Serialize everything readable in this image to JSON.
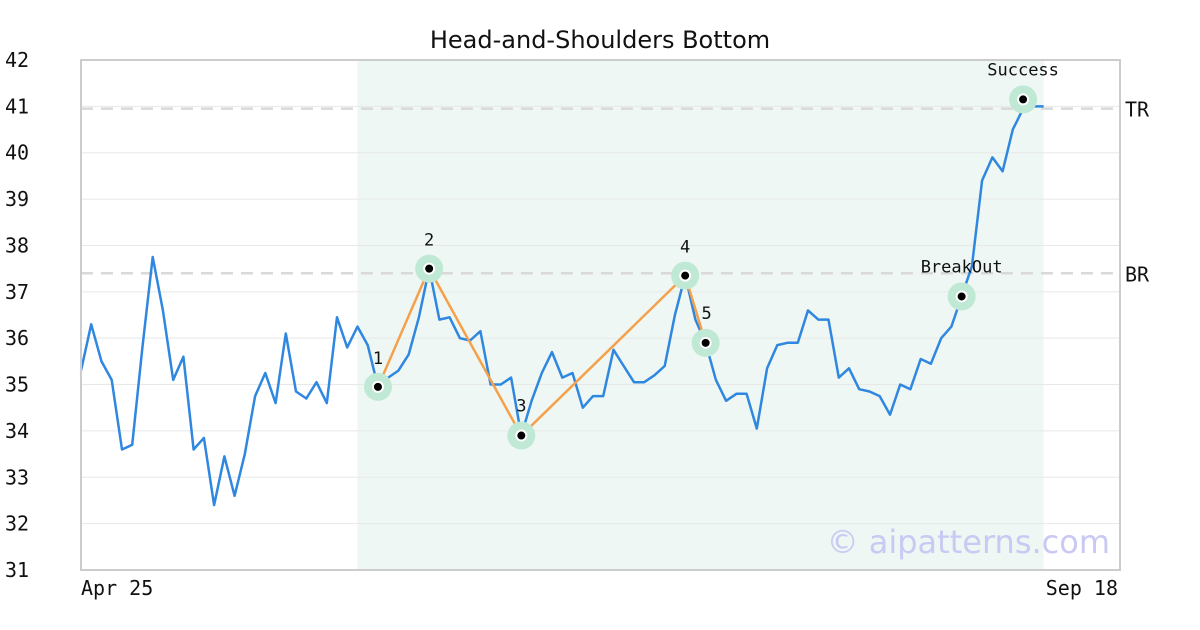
{
  "chart_data": {
    "type": "line",
    "title": "Head-and-Shoulders Bottom",
    "xlabel": "",
    "ylabel": "",
    "x_start_label": "Apr 25",
    "x_end_label": "Sep 18",
    "ylim": [
      31,
      42
    ],
    "yticks": [
      31,
      32,
      33,
      34,
      35,
      36,
      37,
      38,
      39,
      40,
      41,
      42
    ],
    "grid": true,
    "x_count": 95,
    "series": [
      {
        "values": [
          35.3,
          36.3,
          35.5,
          35.1,
          33.6,
          33.7,
          35.8,
          37.75,
          36.6,
          35.1,
          35.6,
          33.6,
          33.85,
          32.4,
          33.45,
          32.6,
          33.5,
          34.75,
          35.25,
          34.6,
          36.1,
          34.85,
          34.7,
          35.05,
          34.6,
          36.45,
          35.8,
          36.25,
          35.85,
          34.95,
          35.15,
          35.3,
          35.65,
          36.45,
          37.5,
          36.4,
          36.45,
          36.0,
          35.95,
          36.15,
          35.0,
          35.0,
          35.15,
          33.9,
          34.65,
          35.25,
          35.7,
          35.15,
          35.25,
          34.5,
          34.75,
          34.75,
          35.75,
          35.4,
          35.05,
          35.05,
          35.2,
          35.4,
          36.5,
          37.35,
          36.4,
          35.9,
          35.1,
          34.65,
          34.8,
          34.8,
          34.05,
          35.35,
          35.85,
          35.9,
          35.9,
          36.6,
          36.4,
          36.4,
          35.15,
          35.35,
          34.9,
          34.85,
          34.75,
          34.35,
          35.0,
          34.9,
          35.55,
          35.45,
          36.0,
          36.25,
          36.9,
          37.55,
          39.4,
          39.9,
          39.6,
          40.5,
          40.95,
          41.0,
          41.0
        ]
      }
    ],
    "pattern_region": {
      "x_start": 27,
      "x_end": 94
    },
    "pattern_points": [
      {
        "label": "1",
        "x": 29,
        "y": 34.95
      },
      {
        "label": "2",
        "x": 34,
        "y": 37.5
      },
      {
        "label": "3",
        "x": 43,
        "y": 33.9
      },
      {
        "label": "4",
        "x": 59,
        "y": 37.35
      },
      {
        "label": "5",
        "x": 61,
        "y": 35.9
      }
    ],
    "events": [
      {
        "label": "BreakOut",
        "x": 86,
        "y": 36.9
      },
      {
        "label": "Success",
        "x": 92,
        "y": 41.15
      }
    ],
    "levels": [
      {
        "label": "TR",
        "y": 40.95
      },
      {
        "label": "BR",
        "y": 37.4
      }
    ],
    "colors": {
      "price_line": "#2f87e0",
      "pattern_line": "#f5a04a",
      "pattern_region": "#eef7f3",
      "marker_halo": "#bfe9d4",
      "level_line": "#d9d9d9",
      "grid": "#e8e8e8",
      "frame": "#cccccc"
    },
    "watermark": "© aipatterns.com"
  }
}
